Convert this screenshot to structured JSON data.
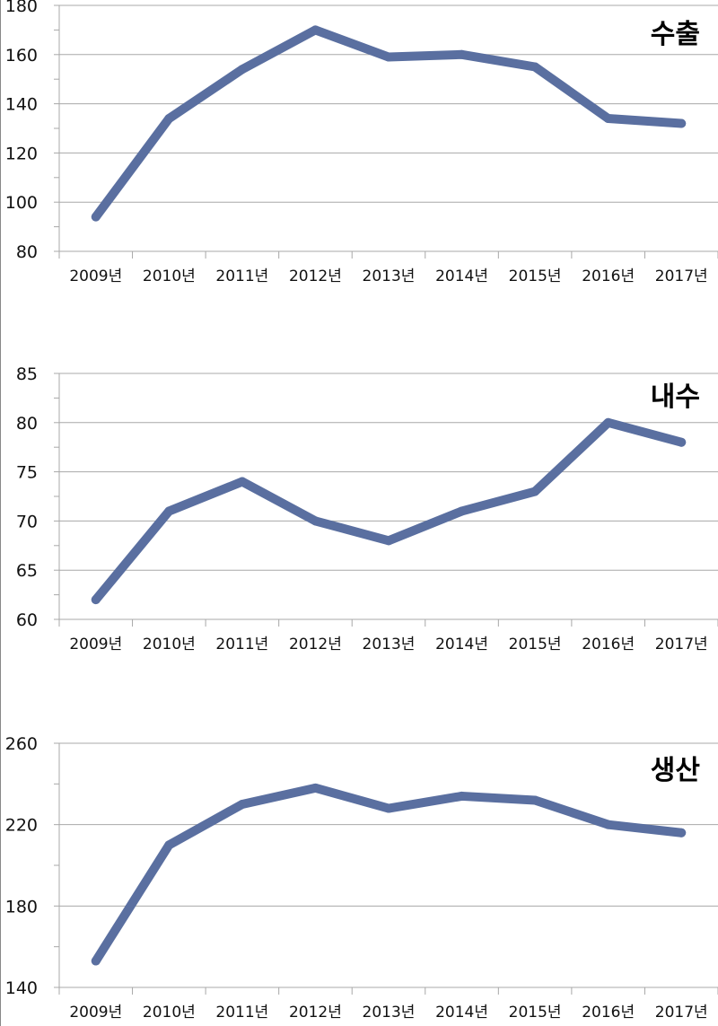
{
  "chart_data": [
    {
      "type": "line",
      "title": "수출",
      "categories": [
        "2009년",
        "2010년",
        "2011년",
        "2012년",
        "2013년",
        "2014년",
        "2015년",
        "2016년",
        "2017년"
      ],
      "values": [
        94,
        134,
        154,
        170,
        159,
        160,
        155,
        134,
        132
      ],
      "ylim": [
        80,
        180
      ],
      "yticks": [
        80,
        100,
        120,
        140,
        160,
        180
      ],
      "grid": true,
      "line_color": "#5a6fa0"
    },
    {
      "type": "line",
      "title": "내수",
      "categories": [
        "2009년",
        "2010년",
        "2011년",
        "2012년",
        "2013년",
        "2014년",
        "2015년",
        "2016년",
        "2017년"
      ],
      "values": [
        62,
        71,
        74,
        70,
        68,
        71,
        73,
        80,
        78
      ],
      "ylim": [
        60,
        85
      ],
      "yticks": [
        60,
        65,
        70,
        75,
        80,
        85
      ],
      "grid": true,
      "line_color": "#5a6fa0"
    },
    {
      "type": "line",
      "title": "생산",
      "categories": [
        "2009년",
        "2010년",
        "2011년",
        "2012년",
        "2013년",
        "2014년",
        "2015년",
        "2016년",
        "2017년"
      ],
      "values": [
        153,
        210,
        230,
        238,
        228,
        234,
        232,
        220,
        216
      ],
      "ylim": [
        140,
        260
      ],
      "yticks": [
        140,
        180,
        220,
        260
      ],
      "grid": true,
      "line_color": "#5a6fa0"
    }
  ]
}
